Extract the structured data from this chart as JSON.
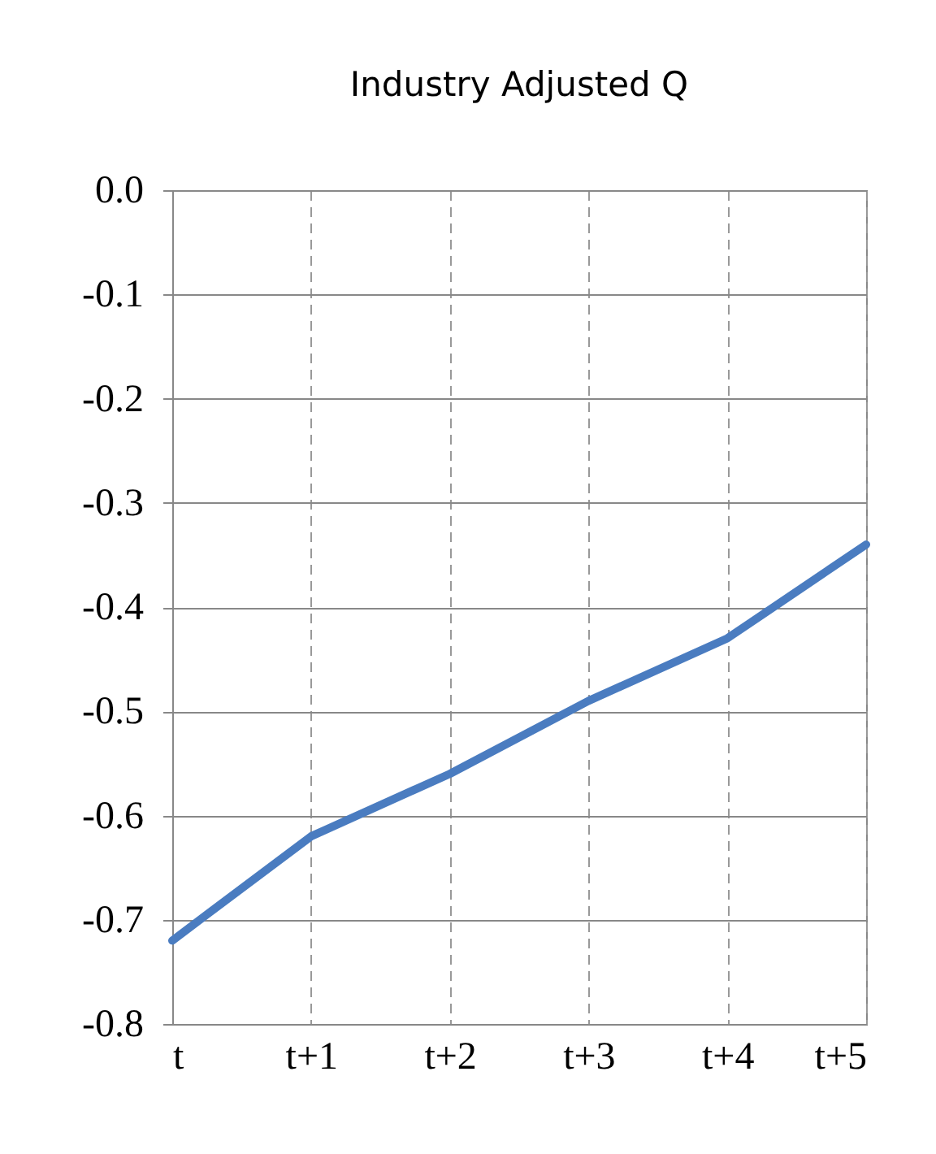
{
  "chart_data": {
    "type": "line",
    "title": "Industry Adjusted Q",
    "categories": [
      "t",
      "t+1",
      "t+2",
      "t+3",
      "t+4",
      "t+5"
    ],
    "series": [
      {
        "color": "#4a7cc0",
        "values": [
          -0.72,
          -0.62,
          -0.56,
          -0.49,
          -0.43,
          -0.34
        ]
      }
    ],
    "ylim": [
      -0.8,
      0.0
    ],
    "yticks": [
      {
        "value": -0.8,
        "label": "-0.8"
      },
      {
        "value": -0.7,
        "label": "-0.7"
      },
      {
        "value": -0.6,
        "label": "-0.6"
      },
      {
        "value": -0.5,
        "label": "-0.5"
      },
      {
        "value": -0.4,
        "label": "-0.4"
      },
      {
        "value": -0.3,
        "label": "-0.3"
      },
      {
        "value": -0.2,
        "label": "-0.2"
      },
      {
        "value": -0.1,
        "label": "-0.1"
      },
      {
        "value": 0.0,
        "label": "0.0"
      }
    ],
    "grid": true,
    "marker": "none",
    "line_style": "solid"
  }
}
